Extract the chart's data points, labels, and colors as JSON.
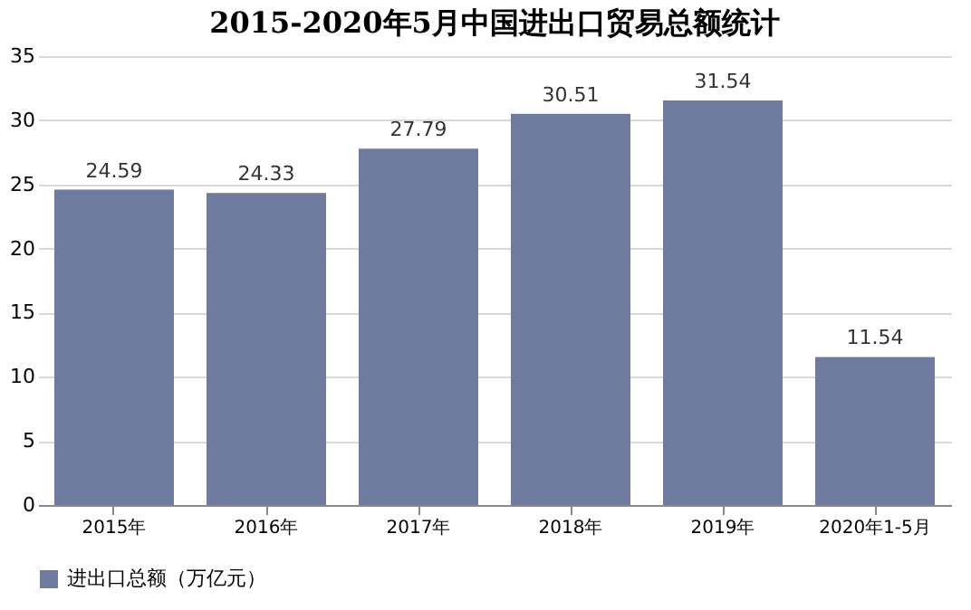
{
  "chart_data": {
    "type": "bar",
    "title": "2015-2020年5月中国进出口贸易总额统计",
    "categories": [
      "2015年",
      "2016年",
      "2017年",
      "2018年",
      "2019年",
      "2020年1-5月"
    ],
    "series": [
      {
        "name": "进出口总额（万亿元）",
        "color": "#6f7a9f",
        "values": [
          24.59,
          24.33,
          27.79,
          30.51,
          31.54,
          11.54
        ]
      }
    ],
    "ylim": [
      0,
      35
    ],
    "yticks": [
      0,
      5,
      10,
      15,
      20,
      25,
      30,
      35
    ],
    "grid": "y",
    "legend": "bottom",
    "data_labels": true
  }
}
